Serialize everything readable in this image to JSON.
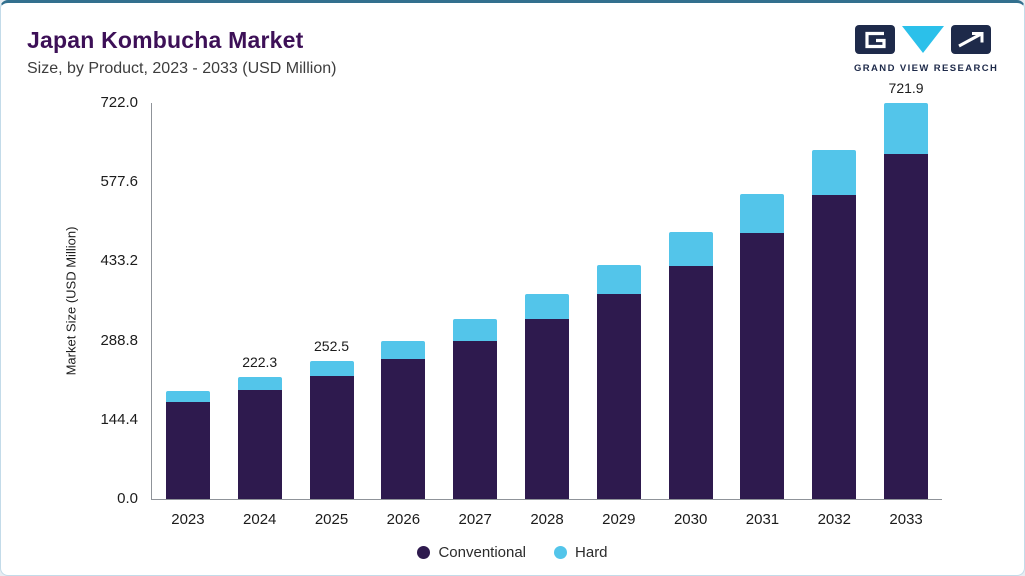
{
  "header": {
    "title": "Japan Kombucha Market",
    "subtitle": "Size, by Product, 2023 - 2033 (USD Million)",
    "logo_text": "GRAND VIEW RESEARCH"
  },
  "colors": {
    "conventional": "#2e1a4e",
    "hard": "#53c5ea",
    "title_purple": "#3d1057",
    "logo_navy": "#1e2a4a",
    "logo_cyan": "#2bc0ea"
  },
  "chart_data": {
    "type": "bar",
    "stacked": true,
    "title": "Japan Kombucha Market Size, by Product, 2023 - 2033 (USD Million)",
    "categories": [
      "2023",
      "2024",
      "2025",
      "2026",
      "2027",
      "2028",
      "2029",
      "2030",
      "2031",
      "2032",
      "2033"
    ],
    "series": [
      {
        "name": "Conventional",
        "color": "#2e1a4e",
        "values": [
          176.5,
          197.9,
          224.2,
          255.4,
          288.9,
          327.9,
          373.0,
          425.2,
          485.2,
          554.3,
          629.9
        ]
      },
      {
        "name": "Hard",
        "color": "#53c5ea",
        "values": [
          19.7,
          24.4,
          28.3,
          31.9,
          38.5,
          45.5,
          53.1,
          61.4,
          70.8,
          81.5,
          92.0
        ]
      }
    ],
    "totals_labeled": {
      "2024": "222.3",
      "2025": "252.5",
      "2033": "721.9"
    },
    "ylabel": "Market Size (USD Million)",
    "y_ticks": [
      "0.0",
      "144.4",
      "288.8",
      "433.2",
      "577.6",
      "722.0"
    ],
    "ylim": [
      0,
      722.0
    ],
    "legend_position": "bottom",
    "grid": false
  }
}
